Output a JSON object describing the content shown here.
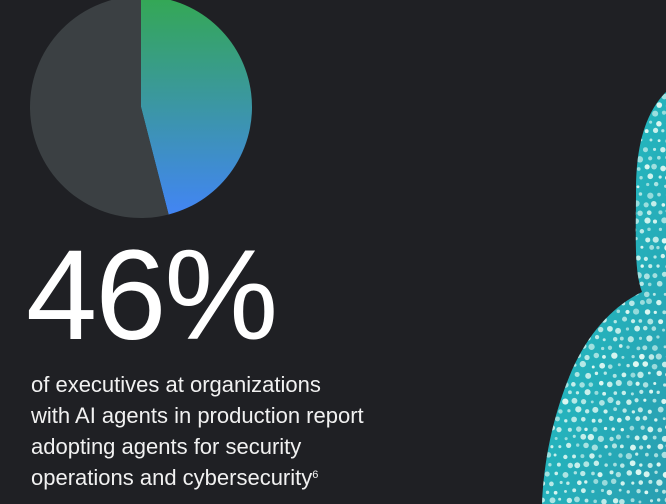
{
  "chart_data": {
    "type": "pie",
    "slices": [
      {
        "label": "",
        "value": 46,
        "color_start": "#34a853",
        "color_end": "#4285f4"
      },
      {
        "label": "",
        "value": 54,
        "color": "#3b4043"
      }
    ]
  },
  "stat": {
    "value": "46%",
    "description_lines": [
      "of executives at organizations",
      "with AI agents in production report",
      "adopting agents for security",
      "operations and cybersecurity"
    ],
    "footnote": "6"
  },
  "colors": {
    "background": "#1f2024",
    "decor": "#2fb8c4"
  }
}
